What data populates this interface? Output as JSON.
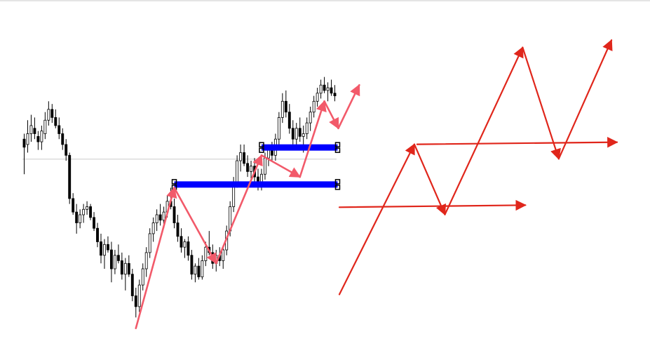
{
  "chart_data": [
    {
      "type": "candlestick",
      "title": "",
      "xlabel": "",
      "ylabel": "",
      "grid": false,
      "legend": "none",
      "horizontal_reference_level": 0.606,
      "candle_colors": {
        "bull": "#ffffff",
        "bear": "#000000",
        "wick": "#000000"
      },
      "candles": [
        [
          0.68,
          0.7,
          0.55,
          0.65
        ],
        [
          0.66,
          0.75,
          0.63,
          0.7
        ],
        [
          0.7,
          0.77,
          0.67,
          0.73
        ],
        [
          0.72,
          0.76,
          0.68,
          0.7
        ],
        [
          0.69,
          0.71,
          0.64,
          0.67
        ],
        [
          0.67,
          0.73,
          0.64,
          0.71
        ],
        [
          0.7,
          0.78,
          0.68,
          0.75
        ],
        [
          0.75,
          0.82,
          0.73,
          0.79
        ],
        [
          0.79,
          0.81,
          0.74,
          0.76
        ],
        [
          0.76,
          0.79,
          0.72,
          0.73
        ],
        [
          0.73,
          0.76,
          0.68,
          0.7
        ],
        [
          0.7,
          0.72,
          0.64,
          0.66
        ],
        [
          0.66,
          0.68,
          0.6,
          0.62
        ],
        [
          0.62,
          0.63,
          0.44,
          0.46
        ],
        [
          0.46,
          0.48,
          0.4,
          0.41
        ],
        [
          0.41,
          0.44,
          0.33,
          0.37
        ],
        [
          0.37,
          0.42,
          0.35,
          0.4
        ],
        [
          0.4,
          0.44,
          0.37,
          0.42
        ],
        [
          0.42,
          0.45,
          0.4,
          0.43
        ],
        [
          0.43,
          0.44,
          0.38,
          0.39
        ],
        [
          0.39,
          0.41,
          0.34,
          0.35
        ],
        [
          0.35,
          0.37,
          0.28,
          0.3
        ],
        [
          0.3,
          0.33,
          0.22,
          0.25
        ],
        [
          0.25,
          0.31,
          0.2,
          0.29
        ],
        [
          0.29,
          0.32,
          0.26,
          0.27
        ],
        [
          0.27,
          0.3,
          0.15,
          0.2
        ],
        [
          0.2,
          0.27,
          0.18,
          0.25
        ],
        [
          0.25,
          0.29,
          0.22,
          0.23
        ],
        [
          0.23,
          0.26,
          0.16,
          0.18
        ],
        [
          0.18,
          0.24,
          0.12,
          0.22
        ],
        [
          0.22,
          0.25,
          0.17,
          0.18
        ],
        [
          0.18,
          0.2,
          0.08,
          0.1
        ],
        [
          0.1,
          0.13,
          0.02,
          0.06
        ],
        [
          0.06,
          0.16,
          0.04,
          0.14
        ],
        [
          0.14,
          0.22,
          0.12,
          0.2
        ],
        [
          0.2,
          0.28,
          0.17,
          0.26
        ],
        [
          0.26,
          0.35,
          0.24,
          0.33
        ],
        [
          0.33,
          0.39,
          0.3,
          0.37
        ],
        [
          0.37,
          0.42,
          0.34,
          0.4
        ],
        [
          0.4,
          0.44,
          0.36,
          0.38
        ],
        [
          0.38,
          0.43,
          0.35,
          0.41
        ],
        [
          0.41,
          0.47,
          0.39,
          0.45
        ],
        [
          0.45,
          0.5,
          0.42,
          0.43
        ],
        [
          0.43,
          0.46,
          0.35,
          0.37
        ],
        [
          0.37,
          0.4,
          0.3,
          0.32
        ],
        [
          0.32,
          0.35,
          0.26,
          0.28
        ],
        [
          0.28,
          0.31,
          0.24,
          0.3
        ],
        [
          0.3,
          0.32,
          0.23,
          0.25
        ],
        [
          0.25,
          0.27,
          0.16,
          0.18
        ],
        [
          0.18,
          0.22,
          0.15,
          0.21
        ],
        [
          0.21,
          0.24,
          0.16,
          0.17
        ],
        [
          0.17,
          0.25,
          0.16,
          0.23
        ],
        [
          0.23,
          0.3,
          0.21,
          0.28
        ],
        [
          0.28,
          0.34,
          0.25,
          0.26
        ],
        [
          0.26,
          0.29,
          0.2,
          0.22
        ],
        [
          0.22,
          0.27,
          0.19,
          0.25
        ],
        [
          0.25,
          0.28,
          0.21,
          0.23
        ],
        [
          0.23,
          0.28,
          0.2,
          0.27
        ],
        [
          0.27,
          0.36,
          0.25,
          0.34
        ],
        [
          0.34,
          0.45,
          0.32,
          0.43
        ],
        [
          0.43,
          0.54,
          0.41,
          0.52
        ],
        [
          0.52,
          0.62,
          0.5,
          0.6
        ],
        [
          0.6,
          0.66,
          0.56,
          0.63
        ],
        [
          0.63,
          0.66,
          0.58,
          0.59
        ],
        [
          0.59,
          0.62,
          0.54,
          0.56
        ],
        [
          0.56,
          0.6,
          0.53,
          0.58
        ],
        [
          0.58,
          0.61,
          0.52,
          0.54
        ],
        [
          0.54,
          0.57,
          0.49,
          0.51
        ],
        [
          0.51,
          0.57,
          0.49,
          0.55
        ],
        [
          0.55,
          0.63,
          0.53,
          0.61
        ],
        [
          0.61,
          0.66,
          0.58,
          0.64
        ],
        [
          0.64,
          0.67,
          0.6,
          0.62
        ],
        [
          0.62,
          0.7,
          0.6,
          0.68
        ],
        [
          0.68,
          0.78,
          0.66,
          0.76
        ],
        [
          0.76,
          0.85,
          0.74,
          0.82
        ],
        [
          0.82,
          0.86,
          0.76,
          0.78
        ],
        [
          0.78,
          0.81,
          0.7,
          0.72
        ],
        [
          0.72,
          0.75,
          0.66,
          0.68
        ],
        [
          0.68,
          0.74,
          0.64,
          0.72
        ],
        [
          0.72,
          0.76,
          0.67,
          0.69
        ],
        [
          0.69,
          0.73,
          0.63,
          0.7
        ],
        [
          0.7,
          0.76,
          0.68,
          0.74
        ],
        [
          0.74,
          0.8,
          0.71,
          0.78
        ],
        [
          0.78,
          0.84,
          0.76,
          0.82
        ],
        [
          0.82,
          0.87,
          0.8,
          0.85
        ],
        [
          0.85,
          0.9,
          0.83,
          0.88
        ],
        [
          0.88,
          0.91,
          0.85,
          0.86
        ],
        [
          0.86,
          0.89,
          0.82,
          0.87
        ],
        [
          0.87,
          0.9,
          0.84,
          0.85
        ],
        [
          0.85,
          0.88,
          0.82,
          0.84
        ]
      ],
      "zones": [
        {
          "level": 0.649,
          "from_bar": 68,
          "to_bar": 90,
          "color": "#0000ff"
        },
        {
          "level": 0.512,
          "from_bar": 43,
          "to_bar": 90,
          "color": "#0000ff"
        }
      ],
      "zigzag": {
        "color": "#f25a6a",
        "points": [
          [
            32,
            -0.02
          ],
          [
            43,
            0.5
          ],
          [
            55,
            0.22
          ],
          [
            68,
            0.62
          ],
          [
            79,
            0.54
          ],
          [
            86,
            0.82
          ],
          [
            90,
            0.72
          ],
          [
            96,
            0.88
          ]
        ]
      }
    },
    {
      "type": "diagram",
      "title": "",
      "line_color": "#e0261b",
      "horizontal_arrows": [
        {
          "y": 0.26,
          "x_from": 0.0,
          "x_to": 0.67
        },
        {
          "y": 0.52,
          "x_from": 0.28,
          "x_to": 1.0
        }
      ],
      "zigzag_points": [
        [
          0.0,
          -0.1
        ],
        [
          0.27,
          0.52
        ],
        [
          0.38,
          0.23
        ],
        [
          0.66,
          0.92
        ],
        [
          0.79,
          0.46
        ],
        [
          0.98,
          0.95
        ]
      ]
    }
  ]
}
